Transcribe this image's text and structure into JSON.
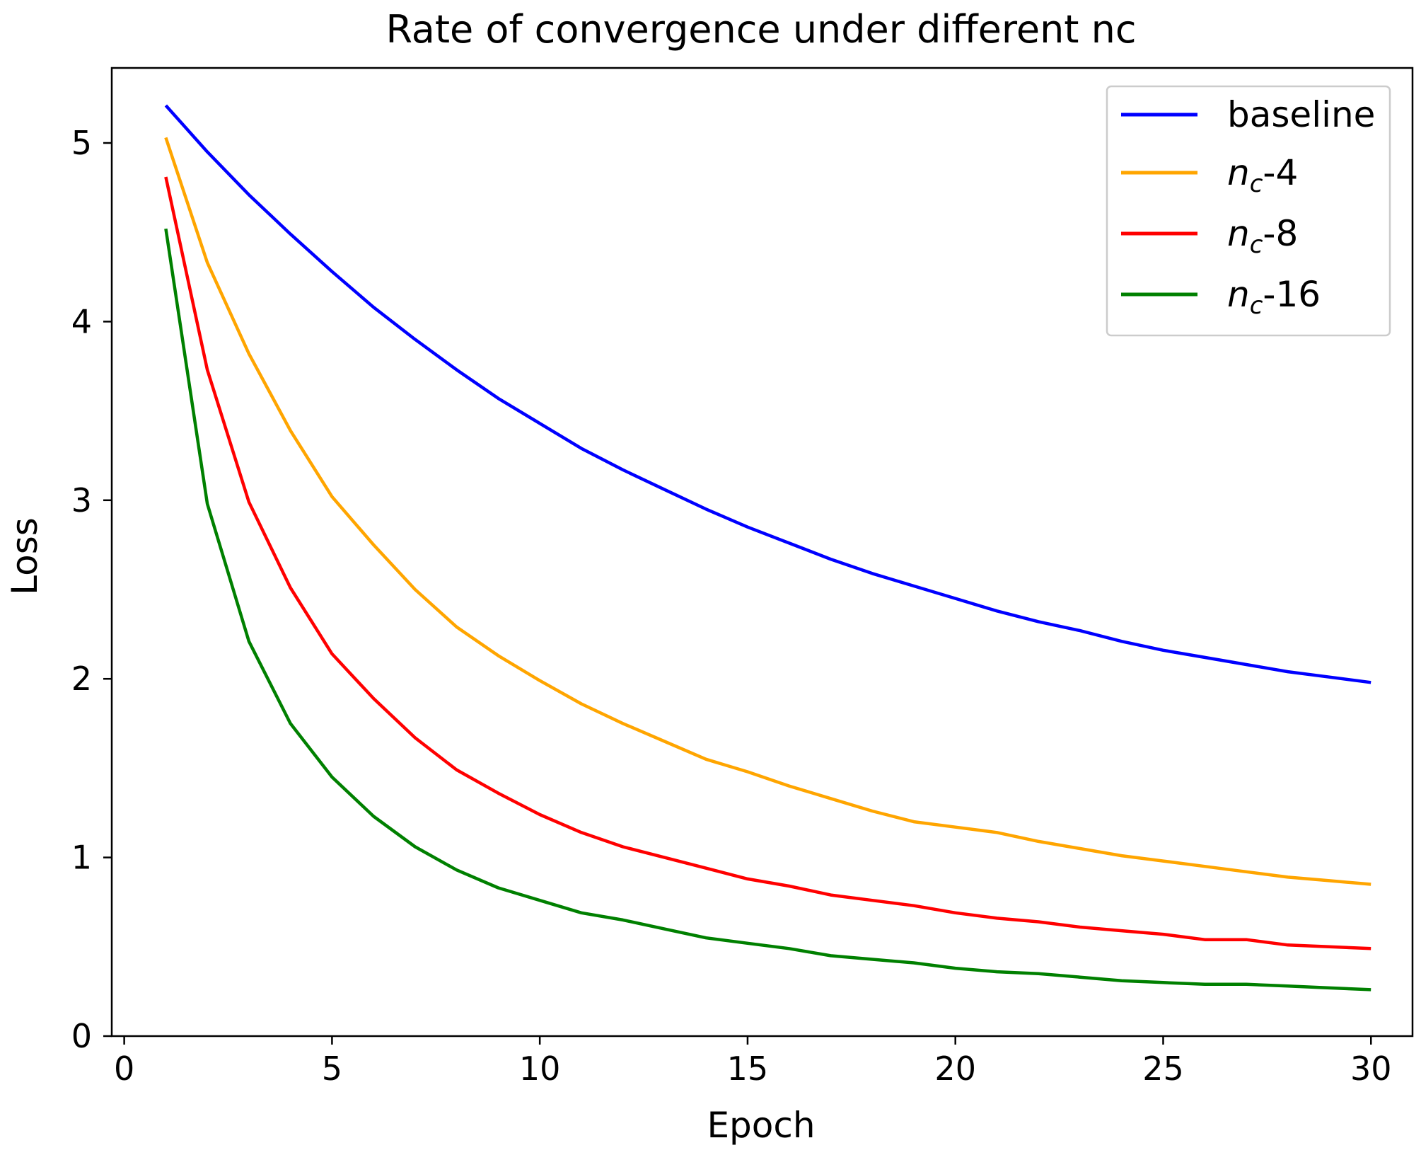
{
  "chart_data": {
    "type": "line",
    "title": "Rate of convergence under different nc",
    "xlabel": "Epoch",
    "ylabel": "Loss",
    "xlim": [
      -0.3,
      31.0
    ],
    "ylim": [
      0,
      5.42
    ],
    "xticks": [
      0,
      5,
      10,
      15,
      20,
      25,
      30
    ],
    "yticks": [
      0,
      1,
      2,
      3,
      4,
      5
    ],
    "grid": false,
    "legend_position": "top-right",
    "x": [
      1,
      2,
      3,
      4,
      5,
      6,
      7,
      8,
      9,
      10,
      11,
      12,
      13,
      14,
      15,
      16,
      17,
      18,
      19,
      20,
      21,
      22,
      23,
      24,
      25,
      26,
      27,
      28,
      29,
      30
    ],
    "series": [
      {
        "name": "baseline",
        "legend": {
          "prefix": "baseline",
          "subscript": "",
          "suffix": ""
        },
        "color": "#0000ff",
        "values": [
          5.21,
          4.95,
          4.71,
          4.49,
          4.28,
          4.08,
          3.9,
          3.73,
          3.57,
          3.43,
          3.29,
          3.17,
          3.06,
          2.95,
          2.85,
          2.76,
          2.67,
          2.59,
          2.52,
          2.45,
          2.38,
          2.32,
          2.27,
          2.21,
          2.16,
          2.12,
          2.08,
          2.04,
          2.01,
          1.98
        ]
      },
      {
        "name": "n_c-4",
        "legend": {
          "prefix": "n",
          "subscript": "c",
          "suffix": "-4"
        },
        "color": "#ffa500",
        "values": [
          5.03,
          4.33,
          3.82,
          3.39,
          3.02,
          2.75,
          2.5,
          2.29,
          2.13,
          1.99,
          1.86,
          1.75,
          1.65,
          1.55,
          1.48,
          1.4,
          1.33,
          1.26,
          1.2,
          1.17,
          1.14,
          1.09,
          1.05,
          1.01,
          0.98,
          0.95,
          0.92,
          0.89,
          0.87,
          0.85
        ]
      },
      {
        "name": "n_c-8",
        "legend": {
          "prefix": "n",
          "subscript": "c",
          "suffix": "-8"
        },
        "color": "#ff0000",
        "values": [
          4.81,
          3.73,
          2.99,
          2.51,
          2.14,
          1.89,
          1.67,
          1.49,
          1.36,
          1.24,
          1.14,
          1.06,
          1.0,
          0.94,
          0.88,
          0.84,
          0.79,
          0.76,
          0.73,
          0.69,
          0.66,
          0.64,
          0.61,
          0.59,
          0.57,
          0.54,
          0.54,
          0.51,
          0.5,
          0.49
        ]
      },
      {
        "name": "n_c-16",
        "legend": {
          "prefix": "n",
          "subscript": "c",
          "suffix": "-16"
        },
        "color": "#008000",
        "values": [
          4.52,
          2.98,
          2.21,
          1.75,
          1.45,
          1.23,
          1.06,
          0.93,
          0.83,
          0.76,
          0.69,
          0.65,
          0.6,
          0.55,
          0.52,
          0.49,
          0.45,
          0.43,
          0.41,
          0.38,
          0.36,
          0.35,
          0.33,
          0.31,
          0.3,
          0.29,
          0.29,
          0.28,
          0.27,
          0.26
        ]
      }
    ]
  }
}
